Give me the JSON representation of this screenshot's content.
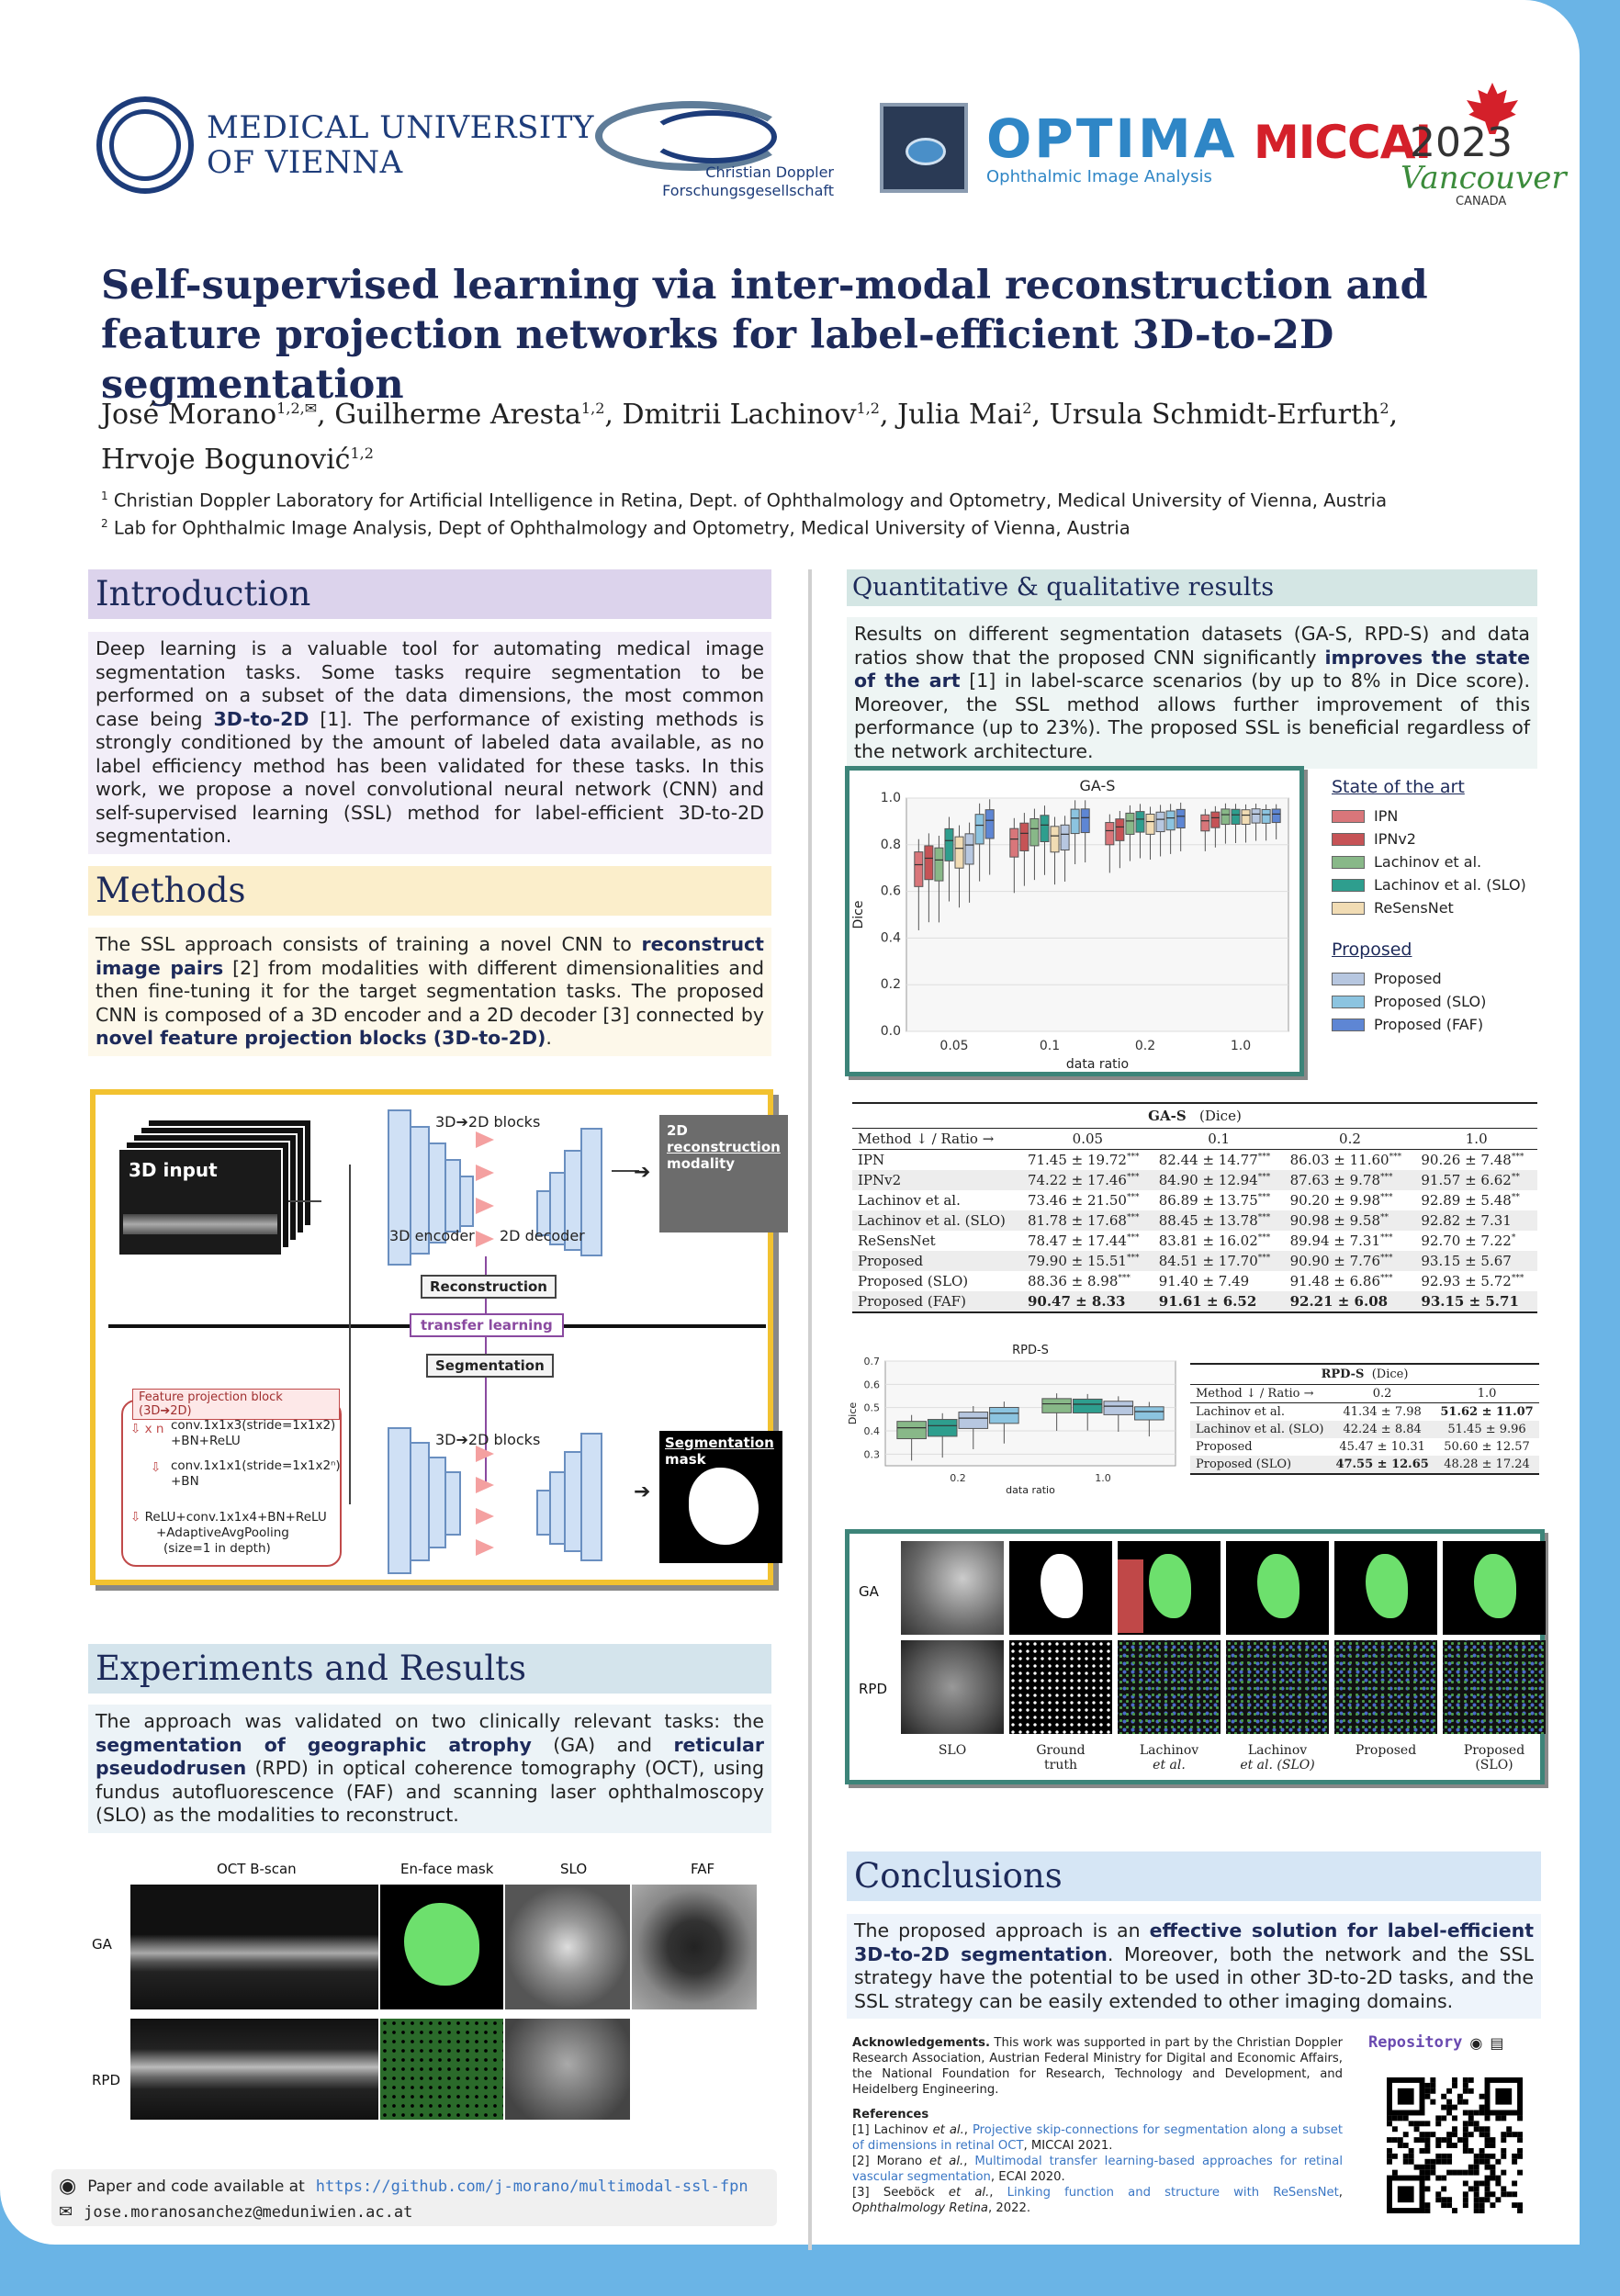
{
  "header": {
    "muv": {
      "line1": "MEDICAL UNIVERSITY",
      "line2": "OF VIENNA"
    },
    "cd": {
      "line1": "Christian Doppler",
      "line2": "Forschungsgesellschaft"
    },
    "optima": {
      "name": "OPTIMA",
      "sub": "Ophthalmic Image Analysis"
    },
    "miccai": {
      "name": "MICCAI",
      "year": "2023",
      "city": "Vancouver",
      "country": "CANADA"
    }
  },
  "title": "Self-supervised learning via inter-modal reconstruction and feature projection networks for label-efficient 3D-to-2D segmentation",
  "authors": [
    {
      "name": "José Morano",
      "sup": "1,2,✉"
    },
    {
      "name": "Guilherme Aresta",
      "sup": "1,2"
    },
    {
      "name": "Dmitrii Lachinov",
      "sup": "1,2"
    },
    {
      "name": "Julia Mai",
      "sup": "2"
    },
    {
      "name": "Ursula Schmidt-Erfurth",
      "sup": "2"
    },
    {
      "name": "Hrvoje Bogunović",
      "sup": "1,2"
    }
  ],
  "affiliations": [
    {
      "num": "1",
      "text": "Christian Doppler Laboratory for Artificial Intelligence in Retina, Dept. of Ophthalmology and Optometry, Medical University of Vienna, Austria"
    },
    {
      "num": "2",
      "text": "Lab for Ophthalmic Image Analysis, Dept of Ophthalmology and Optometry, Medical University of Vienna, Austria"
    }
  ],
  "introduction": {
    "heading": "Introduction",
    "p1": "Deep learning is a valuable tool for automating medical image segmentation tasks. Some tasks require segmentation to be performed on a subset of the data dimensions, the most common case being ",
    "b1": "3D-to-2D",
    "p2": " [1]. The performance of existing methods is strongly conditioned by the amount of labeled data available, as no label efficiency method has been validated for these tasks. In this work, we propose a novel convolutional neural network (CNN) and self-supervised learning (SSL) method for label-efficient 3D-to-2D segmentation."
  },
  "methods": {
    "heading": "Methods",
    "p1": "The SSL approach consists of training a novel CNN to ",
    "b1": "reconstruct image pairs",
    "p2": " [2] from modalities with different dimensionalities and then fine-tuning it for the target segmentation tasks. The proposed CNN is composed of a 3D encoder and a 2D decoder [3] connected by ",
    "b2": "novel feature projection blocks (3D-to-2D)",
    "p3": "."
  },
  "diagram": {
    "input_label": "3D input",
    "blocks_top": "3D➔2D blocks",
    "encoder": "3D encoder",
    "decoder": "2D decoder",
    "recon_line1": "2D",
    "recon_line2": "reconstruction",
    "recon_line3": "modality",
    "reconstruction": "Reconstruction",
    "transfer": "transfer learning",
    "segmentation": "Segmentation",
    "blocks_bottom": "3D➔2D blocks",
    "seg_line1": "Segmentation",
    "seg_line2": "mask",
    "fpb_title": "Feature projection block (3D➔2D)",
    "fpb_xn": "x n",
    "fpb_l1": "conv.1x1x3(stride=1x1x2)",
    "fpb_l2": "+BN+ReLU",
    "fpb_l3": "conv.1x1x1(stride=1x1x2ⁿ)",
    "fpb_l4": "+BN",
    "fpb_l5": "ReLU+conv.1x1x4+BN+ReLU",
    "fpb_l6": "+AdaptiveAvgPooling",
    "fpb_l7": "(size=1 in depth)"
  },
  "experiments": {
    "heading": "Experiments and Results",
    "p1": "The approach was validated on two clinically relevant tasks: the ",
    "b1": "segmentation of geographic atrophy",
    "p2": " (GA) and ",
    "b2": "reticular pseudodrusen",
    "p3": " (RPD) in optical coherence tomography (OCT), using fundus autofluorescence (FAF) and scanning laser ophthalmoscopy (SLO) as the modalities to reconstruct."
  },
  "exp_figs": {
    "col1": "OCT  B-scan",
    "col2": "En-face mask",
    "col3": "SLO",
    "col4": "FAF",
    "row1": "GA",
    "row2": "RPD"
  },
  "quant": {
    "heading": "Quantitative & qualitative results",
    "p1": "Results on different segmentation datasets (GA-S, RPD-S) and data ratios show that the proposed CNN significantly ",
    "b1": "improves the state of the art",
    "p2": " [1] in label-scarce scenarios (by up to 8% in Dice score). Moreover, the SSL method allows further improvement of this performance (up to 23%). The proposed SSL is beneficial regardless of the network architecture."
  },
  "legend": {
    "sota_title": "State of the art",
    "sota": [
      {
        "name": "IPN",
        "color": "#d9767a"
      },
      {
        "name": "IPNv2",
        "color": "#c65356"
      },
      {
        "name": "Lachinov et al.",
        "color": "#88b888"
      },
      {
        "name": "Lachinov et al. (SLO)",
        "color": "#2e9e8e"
      },
      {
        "name": "ReSensNet",
        "color": "#f1dcb4"
      }
    ],
    "prop_title": "Proposed",
    "prop": [
      {
        "name": "Proposed",
        "color": "#b7c7e0"
      },
      {
        "name": "Proposed (SLO)",
        "color": "#8cc4e0"
      },
      {
        "name": "Proposed (FAF)",
        "color": "#5e86d4"
      }
    ]
  },
  "chart_data": [
    {
      "type": "box",
      "title": "GA-S",
      "xlabel": "data  ratio",
      "ylabel": "Dice",
      "categories": [
        "0.05",
        "0.1",
        "0.2",
        "1.0"
      ],
      "ylim": [
        0.0,
        1.0
      ],
      "yticks": [
        "0.0",
        "0.2",
        "0.4",
        "0.6",
        "0.8",
        "1.0"
      ],
      "series": [
        {
          "name": "IPN",
          "values": [
            0.7145,
            0.8244,
            0.8603,
            0.9026
          ]
        },
        {
          "name": "IPNv2",
          "values": [
            0.7422,
            0.849,
            0.8763,
            0.9157
          ]
        },
        {
          "name": "Lachinov et al.",
          "values": [
            0.7346,
            0.8689,
            0.902,
            0.9289
          ]
        },
        {
          "name": "Lachinov et al. (SLO)",
          "values": [
            0.8178,
            0.8845,
            0.9098,
            0.9282
          ]
        },
        {
          "name": "ReSensNet",
          "values": [
            0.7847,
            0.8381,
            0.8994,
            0.927
          ]
        },
        {
          "name": "Proposed",
          "values": [
            0.799,
            0.8451,
            0.909,
            0.9315
          ]
        },
        {
          "name": "Proposed (SLO)",
          "values": [
            0.8836,
            0.914,
            0.9148,
            0.9293
          ]
        },
        {
          "name": "Proposed (FAF)",
          "values": [
            0.9047,
            0.9161,
            0.9221,
            0.9315
          ]
        }
      ]
    },
    {
      "type": "box",
      "title": "RPD-S",
      "xlabel": "data  ratio",
      "ylabel": "Dice",
      "categories": [
        "0.2",
        "1.0"
      ],
      "ylim": [
        0.25,
        0.7
      ],
      "yticks": [
        "0.3",
        "0.4",
        "0.5",
        "0.6",
        "0.7"
      ],
      "series": [
        {
          "name": "Lachinov et al.",
          "values": [
            0.4134,
            0.5162
          ]
        },
        {
          "name": "Lachinov et al. (SLO)",
          "values": [
            0.4224,
            0.5145
          ]
        },
        {
          "name": "Proposed",
          "values": [
            0.4547,
            0.506
          ]
        },
        {
          "name": "Proposed (SLO)",
          "values": [
            0.4755,
            0.4828
          ]
        }
      ]
    }
  ],
  "ga_table": {
    "title": "GA-S",
    "metric": "(Dice)",
    "header": [
      "Method ↓ / Ratio →",
      "0.05",
      "0.1",
      "0.2",
      "1.0"
    ],
    "rows": [
      {
        "method": "IPN",
        "cells": [
          {
            "v": "71.45 ± 19.72",
            "s": "***"
          },
          {
            "v": "82.44 ± 14.77",
            "s": "***"
          },
          {
            "v": "86.03 ± 11.60",
            "s": "***"
          },
          {
            "v": "90.26 ± 7.48",
            "s": "***"
          }
        ]
      },
      {
        "method": "IPNv2",
        "cells": [
          {
            "v": "74.22 ± 17.46",
            "s": "***"
          },
          {
            "v": "84.90 ± 12.94",
            "s": "***"
          },
          {
            "v": "87.63 ± 9.78",
            "s": "***"
          },
          {
            "v": "91.57 ± 6.62",
            "s": "**"
          }
        ]
      },
      {
        "method": "Lachinov et al.",
        "cells": [
          {
            "v": "73.46 ± 21.50",
            "s": "***"
          },
          {
            "v": "86.89 ± 13.75",
            "s": "***"
          },
          {
            "v": "90.20 ± 9.98",
            "s": "***"
          },
          {
            "v": "92.89 ± 5.48",
            "s": "**"
          }
        ]
      },
      {
        "method": "Lachinov et al. (SLO)",
        "cells": [
          {
            "v": "81.78 ± 17.68",
            "s": "***"
          },
          {
            "v": "88.45 ± 13.78",
            "s": "***"
          },
          {
            "v": "90.98 ± 9.58",
            "s": "**"
          },
          {
            "v": "92.82 ± 7.31",
            "s": ""
          }
        ]
      },
      {
        "method": "ReSensNet",
        "cells": [
          {
            "v": "78.47 ± 17.44",
            "s": "***"
          },
          {
            "v": "83.81 ± 16.02",
            "s": "***"
          },
          {
            "v": "89.94 ± 7.31",
            "s": "***"
          },
          {
            "v": "92.70 ± 7.22",
            "s": "*"
          }
        ]
      },
      {
        "method": "Proposed",
        "cells": [
          {
            "v": "79.90 ± 15.51",
            "s": "***"
          },
          {
            "v": "84.51 ± 17.70",
            "s": "***"
          },
          {
            "v": "90.90 ± 7.76",
            "s": "***"
          },
          {
            "v": "93.15 ± 5.67",
            "s": ""
          }
        ]
      },
      {
        "method": "Proposed (SLO)",
        "cells": [
          {
            "v": "88.36 ± 8.98",
            "s": "***"
          },
          {
            "v": "91.40 ± 7.49",
            "s": ""
          },
          {
            "v": "91.48 ± 6.86",
            "s": "***"
          },
          {
            "v": "92.93 ± 5.72",
            "s": "***"
          }
        ]
      },
      {
        "method": "Proposed (FAF)",
        "cells": [
          {
            "v": "90.47 ± 8.33",
            "s": ""
          },
          {
            "v": "91.61 ± 6.52",
            "s": ""
          },
          {
            "v": "92.21 ± 6.08",
            "s": ""
          },
          {
            "v": "93.15 ± 5.71",
            "s": ""
          }
        ]
      }
    ]
  },
  "rpd_table": {
    "title": "RPD-S",
    "metric": "(Dice)",
    "header": [
      "Method ↓ / Ratio →",
      "0.2",
      "1.0"
    ],
    "rows": [
      {
        "method": "Lachinov et al.",
        "cells": [
          "41.34 ± 7.98",
          "51.62 ± 11.07"
        ]
      },
      {
        "method": "Lachinov et al. (SLO)",
        "cells": [
          "42.24 ± 8.84",
          "51.45 ± 9.96"
        ]
      },
      {
        "method": "Proposed",
        "cells": [
          "45.47 ± 10.31",
          "50.60 ± 12.57"
        ]
      },
      {
        "method": "Proposed (SLO)",
        "cells": [
          "47.55 ± 12.65",
          "48.28 ± 17.24"
        ]
      }
    ]
  },
  "qual": {
    "row1": "GA",
    "row2": "RPD",
    "caps": [
      {
        "l1": "SLO",
        "l2": ""
      },
      {
        "l1": "Ground",
        "l2": "truth"
      },
      {
        "l1": "Lachinov",
        "l2": "et al."
      },
      {
        "l1": "Lachinov",
        "l2": "et al. (SLO)"
      },
      {
        "l1": "Proposed",
        "l2": ""
      },
      {
        "l1": "Proposed",
        "l2": "(SLO)"
      }
    ]
  },
  "conclusions": {
    "heading": "Conclusions",
    "p1": "The proposed approach is an ",
    "b1": "effective solution for label-efficient 3D-to-2D segmentation",
    "p2": ". Moreover, both the network and the SSL strategy have the potential to be used in other 3D-to-2D tasks, and the SSL strategy can be easily extended to other imaging domains."
  },
  "ack": {
    "label": "Acknowledgements.",
    "text": " This work was supported in part by the Christian Doppler Research Association, Austrian Federal Ministry for Digital and Economic Affairs, the National Foundation for Research, Technology and Development, and Heidelberg Engineering.",
    "refs_title": "References",
    "r1a": "[1] Lachinov ",
    "r1b": "et al.",
    "r1c": ", ",
    "r1link": "Projective skip-connections for segmentation along a subset of dimensions in retinal OCT",
    "r1d": ", MICCAI 2021.",
    "r2a": "[2] Morano ",
    "r2b": "et al.",
    "r2c": ", ",
    "r2link": "Multimodal transfer learning-based approaches for retinal vascular segmentation",
    "r2d": ", ECAI 2020.",
    "r3a": "[3] Seeböck ",
    "r3b": "et al.",
    "r3c": ", ",
    "r3link": "Linking function and structure with ReSensNet",
    "r3d": ", ",
    "r3e": "Ophthalmology Retina",
    "r3f": ", 2022."
  },
  "repo": {
    "label": "Repository"
  },
  "links": {
    "code_label": "Paper and code available at",
    "url": "https://github.com/j-morano/multimodal-ssl-fpn",
    "email": "jose.moranosanchez@meduniwien.ac.at"
  }
}
